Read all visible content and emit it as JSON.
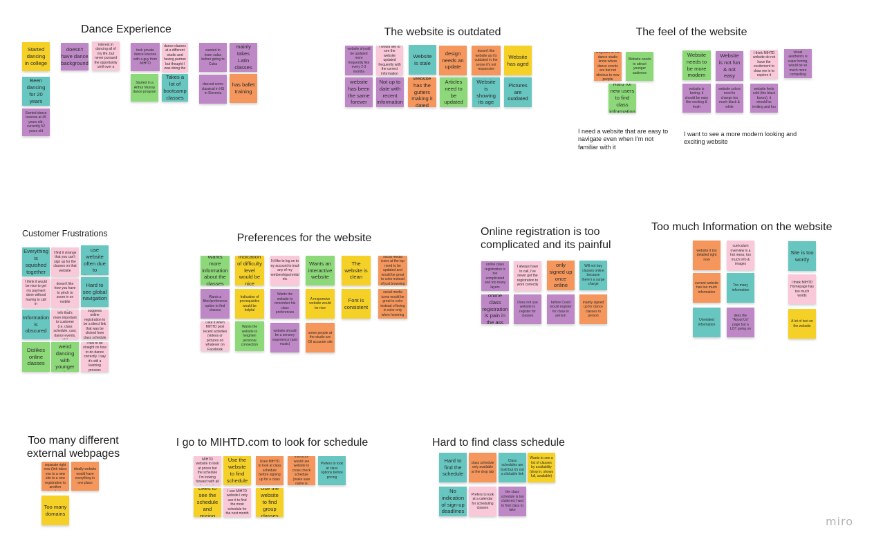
{
  "board": {
    "logo": "miro",
    "sections": [
      {
        "title": "Dance Experience"
      },
      {
        "title": "The website is outdated"
      },
      {
        "title": "The feel of the website"
      },
      {
        "title": "Customer Frustrations"
      },
      {
        "title": "Preferences for the website"
      },
      {
        "title": "Online registration is too complicated and its painful"
      },
      {
        "title": "Too much Information on the website"
      },
      {
        "title": "Too many different external webpages"
      },
      {
        "title": "I go to MIHTD.com to look for schedule"
      },
      {
        "title": "Hard to find class schedule"
      }
    ],
    "notes": [
      {
        "text": "I need a website that are easy to navigate even when I'm not familiar with it"
      },
      {
        "text": "I want to see a more modern looking and exciting website"
      }
    ],
    "stickies": [
      {
        "text": "Started dancing in college",
        "color": "yellow"
      },
      {
        "text": "Been dancing for 20 years",
        "color": "teal"
      },
      {
        "text": "Started dance lessons at 45 years old, currently 52 years old",
        "color": "purple"
      },
      {
        "text": "doesn't have dance background",
        "color": "purple"
      },
      {
        "text": "I've had interest in dancing all of my life, but never pursued the opportunity until over a year ago",
        "color": "pink"
      },
      {
        "text": "took private dance lessons with a guy from MIHTD",
        "color": "purple"
      },
      {
        "text": "I was taking dance classes at a different studio and having partner but thought I was doing the wrong",
        "color": "pink"
      },
      {
        "text": "Started in a Arthur Murray dance program",
        "color": "green"
      },
      {
        "text": "Takes a lot of bootcamp classes",
        "color": "teal"
      },
      {
        "text": "wanted to learn salsa before going to Cuba",
        "color": "purple"
      },
      {
        "text": "mainly takes Latin classes",
        "color": "purple"
      },
      {
        "text": "danced some classical in HS in Slovenia",
        "color": "purple"
      },
      {
        "text": "has ballet training",
        "color": "orange"
      },
      {
        "text": "website should be updated more frequently like every 2-3 months",
        "color": "purple"
      },
      {
        "text": "I would like to see the website updated frequently with the correct information",
        "color": "pink"
      },
      {
        "text": "Website is stale",
        "color": "teal"
      },
      {
        "text": "design needs an update",
        "color": "orange"
      },
      {
        "text": "doesn't like website as it's outdated in the sense it's not responsive",
        "color": "orange"
      },
      {
        "text": "Website has aged",
        "color": "yellow"
      },
      {
        "text": "website has been the same forever",
        "color": "purple"
      },
      {
        "text": "Not up to date with recent information",
        "color": "purple"
      },
      {
        "text": "website has the gutters making it dated",
        "color": "orange"
      },
      {
        "text": "Articles need to be updated",
        "color": "green"
      },
      {
        "text": "Website is showing its age",
        "color": "teal"
      },
      {
        "text": "Pictures are outdated",
        "color": "teal"
      },
      {
        "text": "Regulars at the dance studio know where dance events are but not obvious to new people",
        "color": "orange"
      },
      {
        "text": "Website needs to attract younger audience",
        "color": "green"
      },
      {
        "text": "Hard for new users to find class information",
        "color": "green"
      },
      {
        "text": "Website needs to be more modern",
        "color": "green"
      },
      {
        "text": "Website is not fun & not easy",
        "color": "purple"
      },
      {
        "text": "I think MIHTD website do not have the excitement to draw me in to explore it",
        "color": "pink"
      },
      {
        "text": "visual aesthetics is super boring, would be so much more compelling",
        "color": "purple"
      },
      {
        "text": "website is boring, it should be easy like exciting & fresh",
        "color": "purple"
      },
      {
        "text": "website colors need to change too much black & white",
        "color": "purple"
      },
      {
        "text": "website feels cold (the black boxes), it should be inviting and fun",
        "color": "purple"
      },
      {
        "text": "Everything is squished together",
        "color": "teal"
      },
      {
        "text": "I find it strange that you can't sign up for the classes on that website",
        "color": "pink"
      },
      {
        "text": "Does not use website often due to fustration",
        "color": "teal"
      },
      {
        "text": "I think it would be nice to get my payment done without having to call in",
        "color": "pink"
      },
      {
        "text": "doesn't like how you have to pinch to zoom in on mobile",
        "color": "pink"
      },
      {
        "text": "Hard to see global navigation",
        "color": "teal"
      },
      {
        "text": "Information is obscured",
        "color": "teal"
      },
      {
        "text": "hard to get to info that's more important to customer (i.e. class schedule, cost, dance events, etc)",
        "color": "pink"
      },
      {
        "text": "suggests online registration to be a direct link that was be clicked from class schedule",
        "color": "pink"
      },
      {
        "text": "Dislikes online classes",
        "color": "green"
      },
      {
        "text": "Feels weird dancing with younger students",
        "color": "green"
      },
      {
        "text": "I feel to be straight on how to do dance correctly. I say it's still a learning process",
        "color": "pink"
      },
      {
        "text": "Wants more information about the classes",
        "color": "green"
      },
      {
        "text": "Indication of difficulty level would be nice",
        "color": "yellow"
      },
      {
        "text": "I'd like to log on to my account to track any of my memberships/rentals etc",
        "color": "pink"
      },
      {
        "text": "Wants an interactive website",
        "color": "green"
      },
      {
        "text": "The website is clean",
        "color": "yellow"
      },
      {
        "text": "social media icons at the top need to be updated and would be great to color instead of just browsing",
        "color": "orange"
      },
      {
        "text": "Wants a filter/preference option to find classes",
        "color": "purple"
      },
      {
        "text": "Indication of prerequisites would be helpful",
        "color": "yellow"
      },
      {
        "text": "Wants the website to remember his class preferences",
        "color": "purple"
      },
      {
        "text": "A responsive website would be nice",
        "color": "yellow"
      },
      {
        "text": "Font is consistent",
        "color": "yellow"
      },
      {
        "text": "social media icons would be great to color instead of being in color only when hovering",
        "color": "orange"
      },
      {
        "text": "I like it when MIHTD post recent activities (videos or pictures on whatever on Facebook",
        "color": "pink"
      },
      {
        "text": "Wants the website to heighten personal connection",
        "color": "green"
      },
      {
        "text": "website should be a sensory experience (add music)",
        "color": "purple"
      },
      {
        "text": "some people at the studio are Oil accurate site",
        "color": "orange"
      },
      {
        "text": "online class registration is too complicated and too many layers",
        "color": "purple"
      },
      {
        "text": "I always have to call, I've never got the registration to work correctly",
        "color": "pink"
      },
      {
        "text": "only signed up once online",
        "color": "orange"
      },
      {
        "text": "Will not buy classes online because there's a surge charge",
        "color": "teal"
      },
      {
        "text": "online class registration is pain in the ass",
        "color": "purple"
      },
      {
        "text": "Does not use website to register for classes",
        "color": "purple"
      },
      {
        "text": "before Covid would register for class in person",
        "color": "purple"
      },
      {
        "text": "mainly signed up for dance classes in person",
        "color": "orange"
      },
      {
        "text": "website it too detailed right now",
        "color": "orange"
      },
      {
        "text": "curriculum overview is a hot mess; too much info & images",
        "color": "pink"
      },
      {
        "text": "current website has too much information",
        "color": "orange"
      },
      {
        "text": "Too many information",
        "color": "teal"
      },
      {
        "text": "Unrelated information",
        "color": "teal"
      },
      {
        "text": "likes the \"About Us\" page but a LOT going on",
        "color": "purple"
      },
      {
        "text": "Site is too wordy",
        "color": "teal"
      },
      {
        "text": "I think MIHTD Homepage has too much words",
        "color": "pink"
      },
      {
        "text": "A lot of text on the website",
        "color": "yellow"
      },
      {
        "text": "everything is separate right now (link takes you to a new site to a new registration to another external place)",
        "color": "orange"
      },
      {
        "text": "ideally website would have everything in one place",
        "color": "orange"
      },
      {
        "text": "Too many domains",
        "color": "yellow"
      },
      {
        "text": "I come to MIHTD website to look at prices but the schedule I'm looking forward with all the details",
        "color": "pink"
      },
      {
        "text": "Use the website to find schedule",
        "color": "yellow"
      },
      {
        "text": "Uses MIHTD to look at class schedule before signing up for a class",
        "color": "orange"
      },
      {
        "text": "As an instructor would use website to cross check schedule (make sure name is accurate etc)",
        "color": "orange"
      },
      {
        "text": "Prefers to look at class options before pricing",
        "color": "teal"
      },
      {
        "text": "Likes to see the schedule and pricing",
        "color": "yellow"
      },
      {
        "text": "I use MIHTD website I only use it to find the most schedule for the next month",
        "color": "pink"
      },
      {
        "text": "Use the website to find group classes",
        "color": "yellow"
      },
      {
        "text": "Hard to find the schedule",
        "color": "teal"
      },
      {
        "text": "class schedule only available at the drop tab",
        "color": "orange"
      },
      {
        "text": "Class schedules are bold but it's not a clickable link",
        "color": "teal"
      },
      {
        "text": "Wants to see a list of classes by availability (drop in, shows full, available)",
        "color": "yellow"
      },
      {
        "text": "No indication of sign-up deadlines",
        "color": "teal"
      },
      {
        "text": "Prefers to look at a calendar for scheduling classes",
        "color": "pink"
      },
      {
        "text": "the class schedule is too cluttered; hard to find class to take",
        "color": "purple"
      }
    ],
    "colors": {
      "yellow": "#f5d128",
      "purple": "#be88c7",
      "pink": "#f9c8d9",
      "teal": "#67c6c0",
      "orange": "#f5975c",
      "green": "#8dd97a"
    }
  }
}
